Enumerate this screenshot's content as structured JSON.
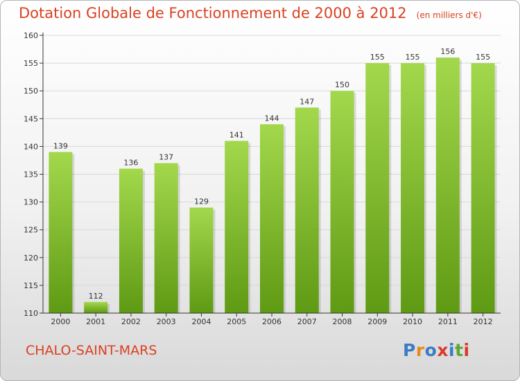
{
  "title": "Dotation Globale de Fonctionnement de 2000 à 2012",
  "unit": "(en milliers d'€)",
  "town": "CHALO-SAINT-MARS",
  "logo": {
    "text": "Proxiti",
    "colors": [
      "#3a7cc6",
      "#e88a1a",
      "#3a7cc6",
      "#d93a2a",
      "#3a7cc6",
      "#5aa832",
      "#d93a2a"
    ]
  },
  "colors": {
    "title": "#d94020",
    "bar_light": "#a3d84c",
    "bar_dark": "#5f9a14",
    "axis": "#333333",
    "grid": "#d8d8d8"
  },
  "chart_data": {
    "type": "bar",
    "categories": [
      "2000",
      "2001",
      "2002",
      "2003",
      "2004",
      "2005",
      "2006",
      "2007",
      "2008",
      "2009",
      "2010",
      "2011",
      "2012"
    ],
    "values": [
      139,
      112,
      136,
      137,
      129,
      141,
      144,
      147,
      150,
      155,
      155,
      156,
      155
    ],
    "title": "Dotation Globale de Fonctionnement de 2000 à 2012",
    "ylim": [
      110,
      160
    ],
    "yticks": [
      110,
      115,
      120,
      125,
      130,
      135,
      140,
      145,
      150,
      155,
      160
    ],
    "grid": true
  }
}
